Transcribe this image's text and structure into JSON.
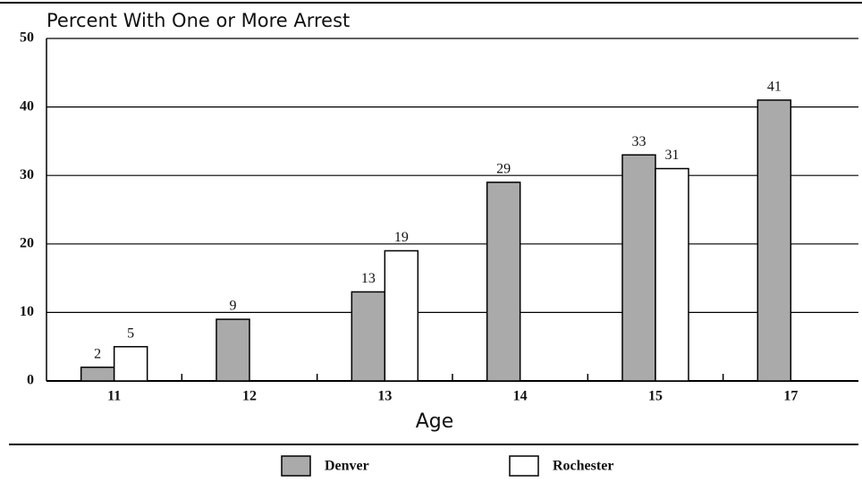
{
  "chart_data": {
    "type": "bar",
    "title": "Percent With One or More Arrest",
    "x_label": "Age",
    "categories": [
      "11",
      "12",
      "13",
      "14",
      "15",
      "17"
    ],
    "series": [
      {
        "name": "Denver",
        "color": "#aaaaaa",
        "values": [
          2,
          9,
          13,
          29,
          33,
          41
        ]
      },
      {
        "name": "Rochester",
        "color": "#ffffff",
        "values": [
          5,
          null,
          19,
          null,
          31,
          null
        ]
      }
    ],
    "ylim": [
      0,
      50
    ],
    "yticks": [
      0,
      10,
      20,
      30,
      40,
      50
    ],
    "grid": true
  }
}
